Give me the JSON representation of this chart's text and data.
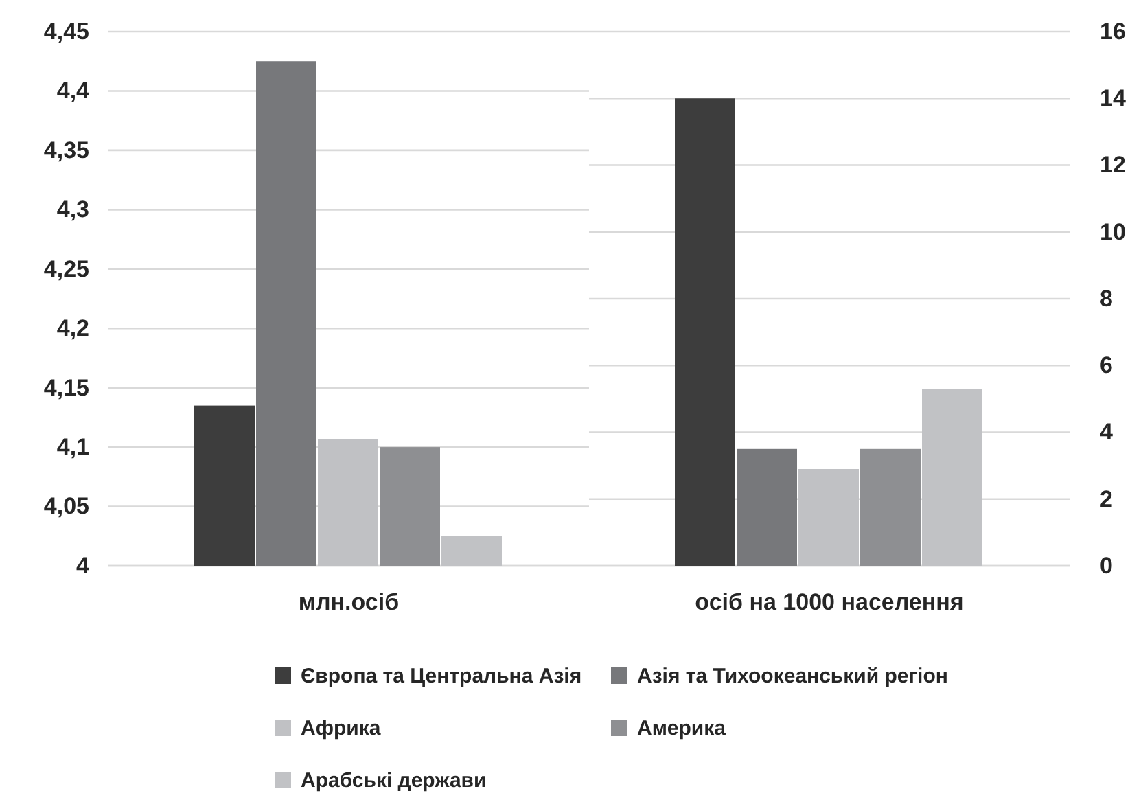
{
  "chart_data": [
    {
      "type": "bar",
      "categories": [
        "млн.осіб"
      ],
      "ylim": [
        4,
        4.45
      ],
      "yticks": [
        {
          "value": 4,
          "label": "4"
        },
        {
          "value": 4.05,
          "label": "4,05"
        },
        {
          "value": 4.1,
          "label": "4,1"
        },
        {
          "value": 4.15,
          "label": "4,15"
        },
        {
          "value": 4.2,
          "label": "4,2"
        },
        {
          "value": 4.25,
          "label": "4,25"
        },
        {
          "value": 4.3,
          "label": "4,3"
        },
        {
          "value": 4.35,
          "label": "4,35"
        },
        {
          "value": 4.4,
          "label": "4,4"
        },
        {
          "value": 4.45,
          "label": "4,45"
        }
      ],
      "grid": "y",
      "legend": "bottom",
      "series": [
        {
          "name": "Європа та Центральна Азія",
          "color": "#3d3d3d",
          "values": [
            4.135
          ]
        },
        {
          "name": "Азія та Тихоокеанський регіон",
          "color": "#77787b",
          "values": [
            4.425
          ]
        },
        {
          "name": "Африка",
          "color": "#c0c1c4",
          "values": [
            4.107
          ]
        },
        {
          "name": "Америка",
          "color": "#8e8f92",
          "values": [
            4.1
          ]
        },
        {
          "name": "Арабські держави",
          "color": "#c1c2c5",
          "values": [
            4.025
          ]
        }
      ]
    },
    {
      "type": "bar",
      "categories": [
        "осіб на 1000 населення"
      ],
      "ylim": [
        0,
        16
      ],
      "yticks": [
        0,
        2,
        4,
        6,
        8,
        10,
        12,
        14,
        16
      ],
      "grid": "y",
      "series": [
        {
          "color": "#3d3d3d",
          "values": [
            14
          ]
        },
        {
          "color": "#77787b",
          "values": [
            3.5
          ]
        },
        {
          "color": "#c0c1c4",
          "values": [
            2.9
          ]
        },
        {
          "color": "#8e8f92",
          "values": [
            3.5
          ]
        },
        {
          "color": "#c1c2c5",
          "values": [
            5.3
          ]
        }
      ]
    }
  ]
}
